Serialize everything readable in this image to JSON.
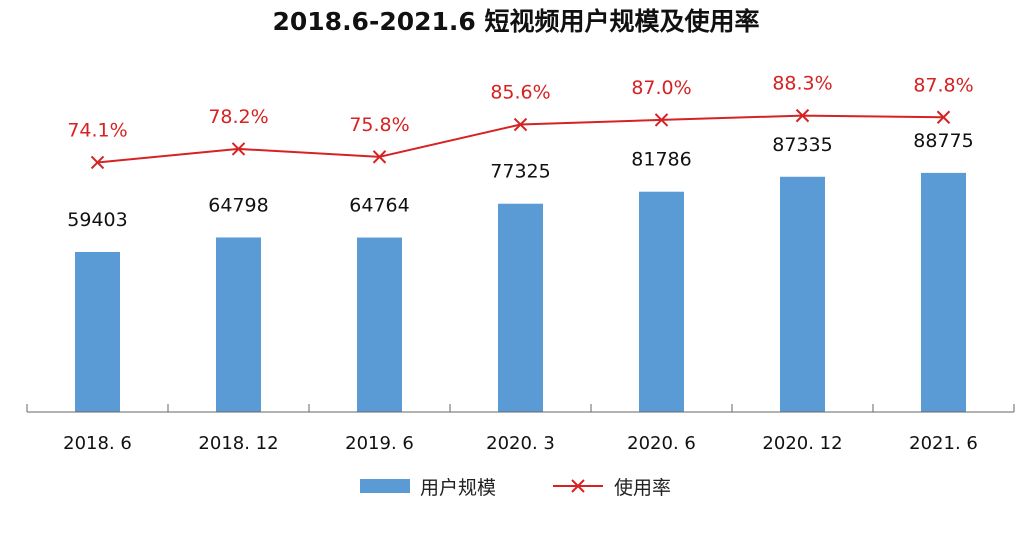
{
  "chart_data": {
    "type": "bar+line",
    "title": "2018.6-2021.6 短视频用户规模及使用率",
    "categories": [
      "2018. 6",
      "2018. 12",
      "2019. 6",
      "2020. 3",
      "2020. 6",
      "2020. 12",
      "2021. 6"
    ],
    "series": [
      {
        "name": "用户规模",
        "type": "bar",
        "color": "#5b9bd5",
        "values": [
          59403,
          64798,
          64764,
          77325,
          81786,
          87335,
          88775
        ],
        "labels": [
          "59403",
          "64798",
          "64764",
          "77325",
          "81786",
          "87335",
          "88775"
        ]
      },
      {
        "name": "使用率",
        "type": "line",
        "color": "#d62222",
        "marker": "x",
        "values": [
          74.1,
          78.2,
          75.8,
          85.6,
          87.0,
          88.3,
          87.8
        ],
        "labels": [
          "74.1%",
          "78.2%",
          "75.8%",
          "85.6%",
          "87.0%",
          "88.3%",
          "87.8%"
        ]
      }
    ],
    "grid": false,
    "legend": "bottom"
  }
}
